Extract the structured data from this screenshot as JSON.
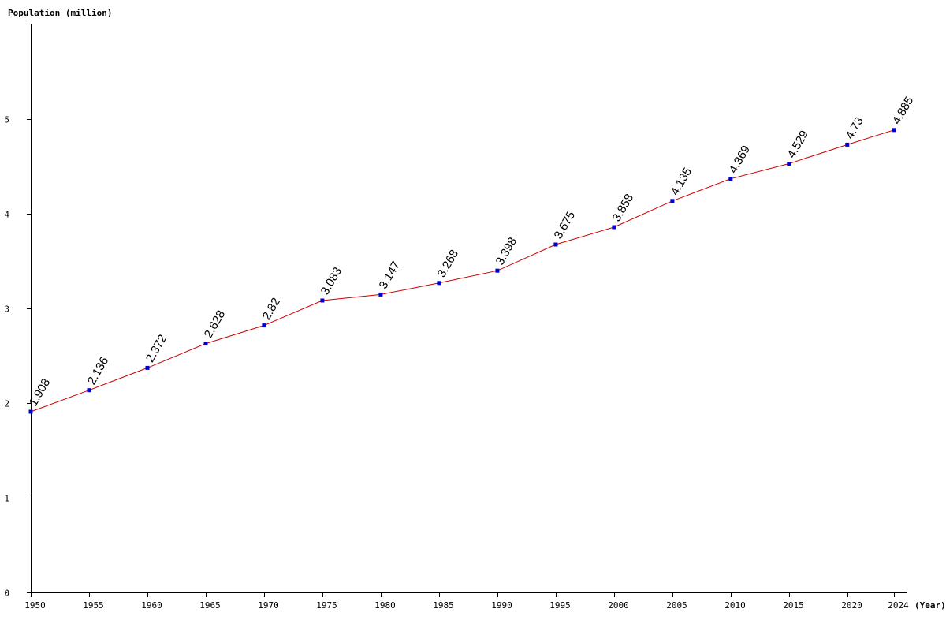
{
  "chart_data": {
    "type": "line",
    "ylabel": "Population (million)",
    "xlabel": "(Year)",
    "x": [
      1950,
      1955,
      1960,
      1965,
      1970,
      1975,
      1980,
      1985,
      1990,
      1995,
      2000,
      2005,
      2010,
      2015,
      2020,
      2024
    ],
    "series": [
      {
        "values": [
          1.908,
          2.136,
          2.372,
          2.628,
          2.82,
          3.083,
          3.147,
          3.268,
          3.398,
          3.675,
          3.858,
          4.135,
          4.369,
          4.529,
          4.73,
          4.885
        ]
      }
    ],
    "data_labels": [
      "1.908",
      "2.136",
      "2.372",
      "2.628",
      "2.82",
      "3.083",
      "3.147",
      "3.268",
      "3.398",
      "3.675",
      "3.858",
      "4.135",
      "4.369",
      "4.529",
      "4.73",
      "4.885"
    ],
    "x_tick_labels": [
      "1950",
      "1955",
      "1960",
      "1965",
      "1970",
      "1975",
      "1980",
      "1985",
      "1990",
      "1995",
      "2000",
      "2005",
      "2010",
      "2015",
      "2020",
      "2024"
    ],
    "y_ticks": [
      0,
      1,
      2,
      3,
      4,
      5
    ],
    "y_tick_labels": [
      "0",
      "1",
      "2",
      "3",
      "4",
      "5"
    ],
    "xlim": [
      1950,
      2024
    ],
    "ylim": [
      0,
      6
    ],
    "grid": false,
    "colors": {
      "line": "#cc0000",
      "points": "#0000cc",
      "axes": "#000000"
    }
  }
}
